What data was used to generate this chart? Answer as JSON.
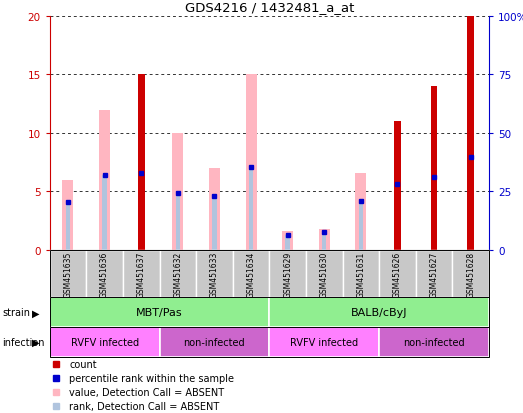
{
  "title": "GDS4216 / 1432481_a_at",
  "samples": [
    "GSM451635",
    "GSM451636",
    "GSM451637",
    "GSM451632",
    "GSM451633",
    "GSM451634",
    "GSM451629",
    "GSM451630",
    "GSM451631",
    "GSM451626",
    "GSM451627",
    "GSM451628"
  ],
  "count_values": [
    0,
    0,
    15,
    0,
    0,
    0,
    0,
    0,
    0,
    11,
    14,
    20
  ],
  "pink_values": [
    6,
    12,
    0,
    10,
    7,
    15,
    1.6,
    1.8,
    6.6,
    0,
    0,
    0
  ],
  "lb_values": [
    4.1,
    6.4,
    6.6,
    4.9,
    4.6,
    7.1,
    1.3,
    1.5,
    4.2,
    5.6,
    6.2,
    7.9
  ],
  "blue_dot_y_left": [
    4.1,
    6.4,
    6.6,
    4.9,
    4.6,
    7.1,
    1.3,
    1.5,
    4.2,
    5.6,
    6.2,
    7.9
  ],
  "strain_groups": [
    {
      "label": "MBT/Pas",
      "start": 0,
      "end": 6,
      "color": "#90EE90"
    },
    {
      "label": "BALB/cByJ",
      "start": 6,
      "end": 12,
      "color": "#90EE90"
    }
  ],
  "infection_groups": [
    {
      "label": "RVFV infected",
      "start": 0,
      "end": 3,
      "color": "#FF80FF"
    },
    {
      "label": "non-infected",
      "start": 3,
      "end": 6,
      "color": "#CC66CC"
    },
    {
      "label": "RVFV infected",
      "start": 6,
      "end": 9,
      "color": "#FF80FF"
    },
    {
      "label": "non-infected",
      "start": 9,
      "end": 12,
      "color": "#CC66CC"
    }
  ],
  "ylim_left": [
    0,
    20
  ],
  "ylim_right": [
    0,
    100
  ],
  "yticks_left": [
    0,
    5,
    10,
    15,
    20
  ],
  "yticks_right": [
    0,
    25,
    50,
    75,
    100
  ],
  "bar_color": "#CC0000",
  "pink_color": "#FFB6C1",
  "lb_color": "#B0C4DE",
  "blue_dot_color": "#0000CC",
  "left_axis_color": "#CC0000",
  "right_axis_color": "#0000CC",
  "grid_color": "#333333",
  "sample_box_color": "#C8C8C8",
  "border_color": "#000000"
}
